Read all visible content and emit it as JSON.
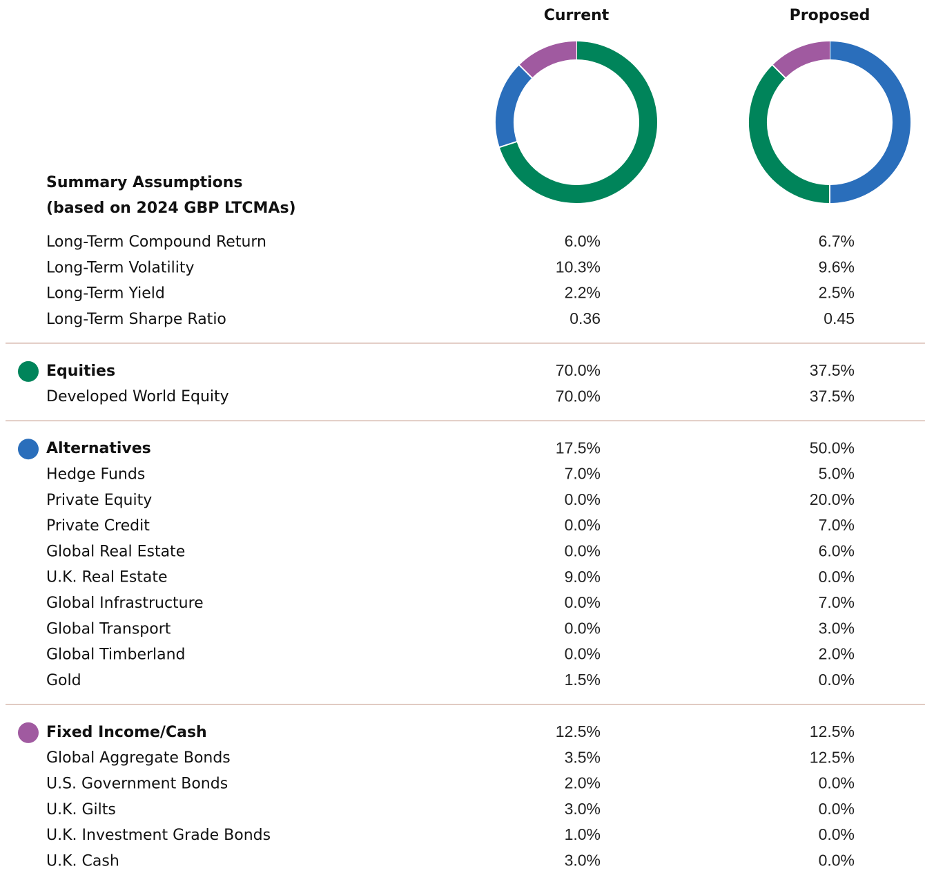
{
  "header": {
    "title": "Summary Assumptions",
    "subtitle": "(based on 2024 GBP LTCMAs)"
  },
  "columns": [
    "Current",
    "Proposed"
  ],
  "donuts": [
    {
      "segments": [
        {
          "value": 70,
          "color": "#00845a"
        },
        {
          "value": 17.5,
          "color": "#2a6ebb"
        },
        {
          "value": 12.5,
          "color": "#a05aa0"
        }
      ]
    },
    {
      "segments": [
        {
          "value": 50,
          "color": "#2a6ebb"
        },
        {
          "value": 37.5,
          "color": "#00845a"
        },
        {
          "value": 12.5,
          "color": "#a05aa0"
        }
      ]
    }
  ],
  "metrics": [
    {
      "label": "Long-Term Compound Return",
      "values": [
        "6.0%",
        "6.7%"
      ]
    },
    {
      "label": "Long-Term Volatility",
      "values": [
        "10.3%",
        "9.6%"
      ]
    },
    {
      "label": "Long-Term Yield",
      "values": [
        "2.2%",
        "2.5%"
      ]
    },
    {
      "label": "Long-Term Sharpe Ratio",
      "values": [
        "0.36",
        "0.45"
      ]
    }
  ],
  "groups": [
    {
      "label": "Equities",
      "color": "#00845a",
      "values": [
        "70.0%",
        "37.5%"
      ],
      "rows": [
        {
          "label": "Developed World Equity",
          "values": [
            "70.0%",
            "37.5%"
          ]
        }
      ]
    },
    {
      "label": "Alternatives",
      "color": "#2a6ebb",
      "values": [
        "17.5%",
        "50.0%"
      ],
      "rows": [
        {
          "label": "Hedge Funds",
          "values": [
            "7.0%",
            "5.0%"
          ]
        },
        {
          "label": "Private Equity",
          "values": [
            "0.0%",
            "20.0%"
          ]
        },
        {
          "label": "Private Credit",
          "values": [
            "0.0%",
            "7.0%"
          ]
        },
        {
          "label": "Global Real Estate",
          "values": [
            "0.0%",
            "6.0%"
          ]
        },
        {
          "label": "U.K. Real Estate",
          "values": [
            "9.0%",
            "0.0%"
          ]
        },
        {
          "label": "Global Infrastructure",
          "values": [
            "0.0%",
            "7.0%"
          ]
        },
        {
          "label": "Global Transport",
          "values": [
            "0.0%",
            "3.0%"
          ]
        },
        {
          "label": "Global Timberland",
          "values": [
            "0.0%",
            "2.0%"
          ]
        },
        {
          "label": "Gold",
          "values": [
            "1.5%",
            "0.0%"
          ]
        }
      ]
    },
    {
      "label": "Fixed Income/Cash",
      "color": "#a05aa0",
      "values": [
        "12.5%",
        "12.5%"
      ],
      "rows": [
        {
          "label": "Global Aggregate Bonds",
          "values": [
            "3.5%",
            "12.5%"
          ]
        },
        {
          "label": "U.S. Government Bonds",
          "values": [
            "2.0%",
            "0.0%"
          ]
        },
        {
          "label": "U.K. Gilts",
          "values": [
            "3.0%",
            "0.0%"
          ]
        },
        {
          "label": "U.K. Investment Grade Bonds",
          "values": [
            "1.0%",
            "0.0%"
          ]
        },
        {
          "label": "U.K. Cash",
          "values": [
            "3.0%",
            "0.0%"
          ]
        }
      ]
    }
  ]
}
